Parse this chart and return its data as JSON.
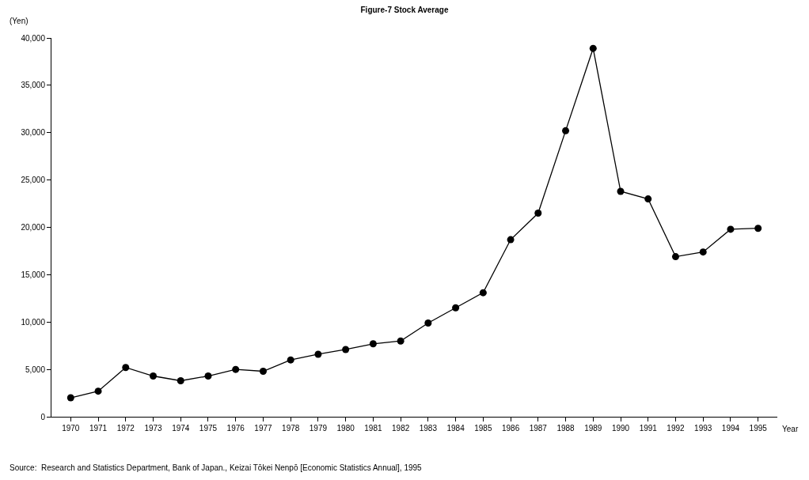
{
  "chart_data": {
    "type": "line",
    "title": "Figure-7 Stock Average",
    "xlabel": "Year",
    "ylabel": "(Yen)",
    "categories": [
      "1970",
      "1971",
      "1972",
      "1973",
      "1974",
      "1975",
      "1976",
      "1977",
      "1978",
      "1979",
      "1980",
      "1981",
      "1982",
      "1983",
      "1984",
      "1985",
      "1986",
      "1987",
      "1988",
      "1989",
      "1990",
      "1991",
      "1992",
      "1993",
      "1994",
      "1995"
    ],
    "series": [
      {
        "color": "#000000",
        "values": [
          2000,
          2700,
          5200,
          4300,
          3800,
          4300,
          5000,
          4800,
          6000,
          6600,
          7100,
          7700,
          8000,
          9900,
          11500,
          13100,
          18700,
          21500,
          30200,
          38900,
          23800,
          23000,
          16900,
          17400,
          19800,
          19900
        ]
      }
    ],
    "ylim": [
      0,
      40000
    ],
    "yticks": [
      {
        "value": 0,
        "label": "0"
      },
      {
        "value": 5000,
        "label": "5,000"
      },
      {
        "value": 10000,
        "label": "10,000"
      },
      {
        "value": 15000,
        "label": "15,000"
      },
      {
        "value": 20000,
        "label": "20,000"
      },
      {
        "value": 25000,
        "label": "25,000"
      },
      {
        "value": 30000,
        "label": "30,000"
      },
      {
        "value": 35000,
        "label": "35,000"
      },
      {
        "value": 40000,
        "label": "40,000"
      }
    ],
    "legend": false,
    "marker": "circle",
    "line_style": "solid",
    "annotations": [
      "Source:  Research and Statistics Department, Bank of Japan., Keizai Tōkei Nenpō [Economic Statistics Annual], 1995"
    ]
  }
}
